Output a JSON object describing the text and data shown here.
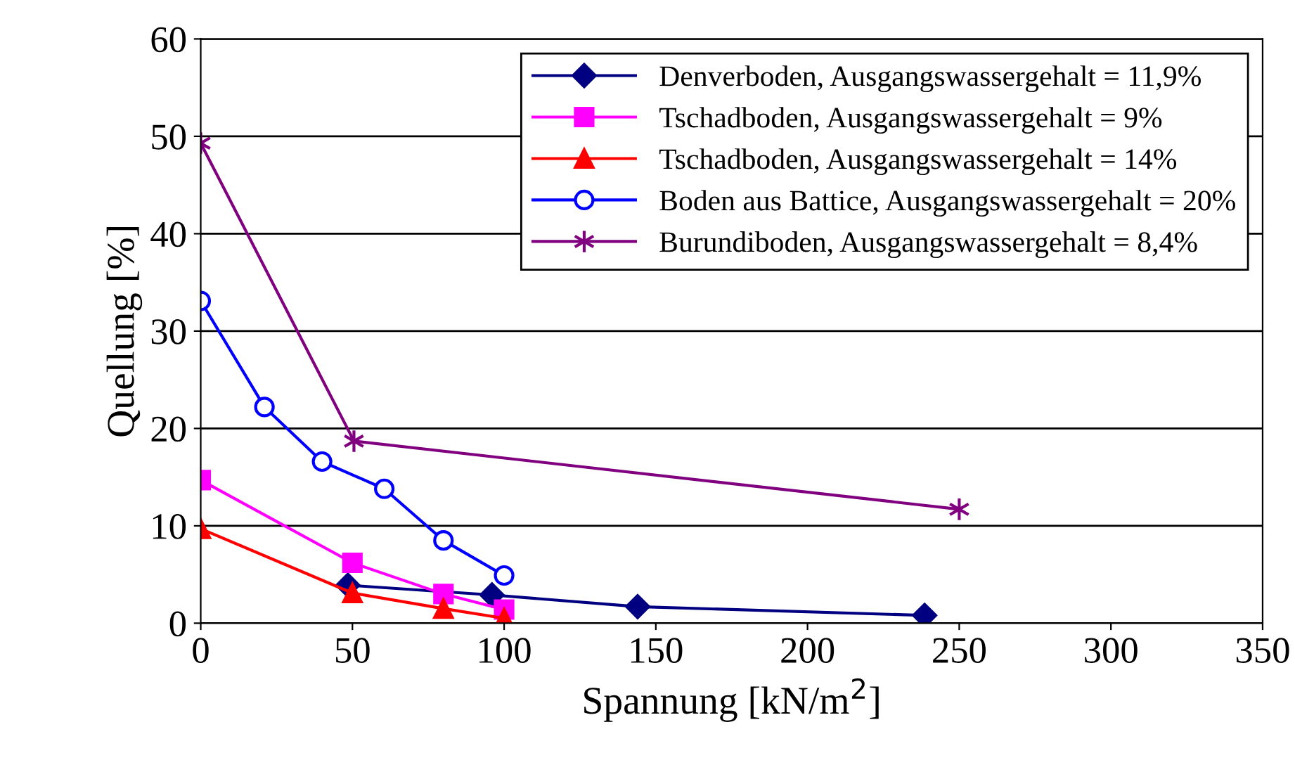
{
  "chart_data": {
    "type": "line",
    "xlabel": "Spannung [kN/m$^{2}$]",
    "ylabel": "Quellung [%]",
    "xlim": [
      0,
      350
    ],
    "xticks": [
      0,
      50,
      100,
      150,
      200,
      250,
      300,
      350
    ],
    "ylim": [
      0,
      60
    ],
    "yticks": [
      0,
      10,
      20,
      30,
      40,
      50,
      60
    ],
    "grid": "y",
    "legend": "top right",
    "series": [
      {
        "name": "Denverboden, Ausgangswassergehalt = 11,9%",
        "color": "#000080",
        "marker": "diamond",
        "x": [
          48.5,
          96,
          144,
          238.6
        ],
        "values": [
          3.9,
          2.9,
          1.7,
          0.8
        ]
      },
      {
        "name": "Tschadboden, Ausgangswassergehalt = 9%",
        "color": "#ff00ff",
        "marker": "square",
        "x": [
          0,
          50,
          80,
          100
        ],
        "values": [
          14.7,
          6.2,
          3.0,
          1.4
        ]
      },
      {
        "name": "Tschadboden, Ausgangswassergehalt = 14%",
        "color": "#ff0000",
        "marker": "triangle",
        "x": [
          0,
          50,
          80,
          100
        ],
        "values": [
          9.7,
          3.1,
          1.5,
          0.5
        ]
      },
      {
        "name": "Boden aus Battice, Ausgangswassergehalt = 20%",
        "color": "#0000ff",
        "marker": "circle",
        "x": [
          0,
          21,
          40,
          60.5,
          80,
          100
        ],
        "values": [
          33.1,
          22.2,
          16.6,
          13.8,
          8.5,
          4.9
        ]
      },
      {
        "name": "Burundiboden, Ausgangswassergehalt = 8,4%",
        "color": "#800080",
        "marker": "cross",
        "x": [
          0,
          50.5,
          250
        ],
        "values": [
          49.3,
          18.7,
          11.7
        ]
      }
    ]
  }
}
